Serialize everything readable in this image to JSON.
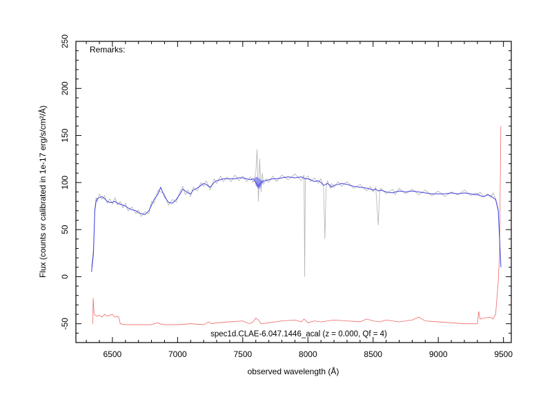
{
  "chart_data": {
    "type": "line",
    "title": "",
    "xlabel": "observed wavelength (Å)",
    "ylabel": "Flux (counts or calibrated in 1e-17 erg/s/cm²/Å)",
    "xlim": [
      6220,
      9560
    ],
    "ylim": [
      -70,
      250
    ],
    "xticks": [
      6500,
      7000,
      7500,
      8000,
      8500,
      9000,
      9500
    ],
    "yticks": [
      -50,
      0,
      50,
      100,
      150,
      200,
      250
    ],
    "xtick_labels": [
      "6500",
      "7000",
      "7500",
      "8000",
      "8500",
      "9000",
      "9500"
    ],
    "ytick_labels": [
      "-50",
      "0",
      "50",
      "100",
      "150",
      "200",
      "250"
    ],
    "remarks": "Remarks:",
    "caption": "spec1d.CLAE-6.047.1446_acal (z = 0.000, Qf = 4)",
    "colors": {
      "data": "#b0b0b0",
      "model": "#4040dd",
      "error": "#ee6666"
    },
    "series": [
      {
        "role": "model",
        "x": [
          6340,
          6355,
          6365,
          6375,
          6385,
          6400,
          6420,
          6440,
          6460,
          6480,
          6500,
          6520,
          6540,
          6560,
          6580,
          6600,
          6620,
          6650,
          6680,
          6700,
          6720,
          6750,
          6780,
          6800,
          6820,
          6850,
          6870,
          6900,
          6930,
          6960,
          6990,
          7020,
          7040,
          7060,
          7080,
          7100,
          7120,
          7150,
          7180,
          7200,
          7220,
          7250,
          7280,
          7300,
          7330,
          7350,
          7380,
          7410,
          7440,
          7470,
          7500,
          7530,
          7560,
          7580,
          7600,
          7620,
          7640,
          7660,
          7680,
          7700,
          7730,
          7760,
          7800,
          7850,
          7900,
          7950,
          7980,
          8000,
          8020,
          8050,
          8080,
          8100,
          8120,
          8150,
          8170,
          8180,
          8200,
          8230,
          8260,
          8300,
          8350,
          8400,
          8450,
          8480,
          8500,
          8520,
          8540,
          8560,
          8600,
          8650,
          8670,
          8700,
          8750,
          8800,
          8850,
          8900,
          8950,
          9000,
          9050,
          9100,
          9150,
          9200,
          9250,
          9280,
          9300,
          9320,
          9350,
          9380,
          9400,
          9420,
          9440,
          9460,
          9470,
          9480
        ],
        "y": [
          5,
          25,
          70,
          80,
          83,
          84,
          85,
          83,
          80,
          79,
          79,
          80,
          78,
          77,
          76,
          75,
          73,
          71,
          70,
          68,
          67,
          66,
          70,
          76,
          82,
          88,
          95,
          85,
          79,
          78,
          82,
          88,
          93,
          91,
          89,
          88,
          92,
          94,
          97,
          99,
          98,
          95,
          100,
          102,
          103,
          104,
          104,
          104,
          104,
          105,
          105,
          104,
          103,
          104,
          100,
          96,
          100,
          102,
          102,
          103,
          104,
          104,
          105,
          106,
          105,
          106,
          104,
          104,
          103,
          101,
          102,
          100,
          97,
          99,
          97,
          95,
          97,
          98,
          99,
          98,
          96,
          95,
          94,
          93,
          92,
          93,
          91,
          92,
          90,
          89,
          90,
          91,
          90,
          91,
          90,
          89,
          88,
          88,
          88,
          89,
          88,
          89,
          88,
          87,
          88,
          86,
          85,
          87,
          86,
          84,
          82,
          70,
          40,
          10
        ]
      },
      {
        "role": "data",
        "x": [
          6340,
          6355,
          6365,
          6375,
          6385,
          6400,
          6420,
          6440,
          6460,
          6480,
          6500,
          6520,
          6540,
          6560,
          6580,
          6600,
          6620,
          6650,
          6680,
          6700,
          6720,
          6750,
          6780,
          6800,
          6820,
          6850,
          6870,
          6900,
          6930,
          6960,
          6990,
          7020,
          7040,
          7060,
          7080,
          7100,
          7120,
          7150,
          7180,
          7200,
          7220,
          7250,
          7280,
          7300,
          7330,
          7350,
          7380,
          7410,
          7440,
          7470,
          7500,
          7530,
          7560,
          7580,
          7600,
          7610,
          7620,
          7630,
          7640,
          7650,
          7660,
          7680,
          7700,
          7730,
          7760,
          7800,
          7850,
          7900,
          7950,
          7970,
          7975,
          7980,
          8000,
          8020,
          8050,
          8080,
          8100,
          8120,
          8130,
          8140,
          8150,
          8170,
          8180,
          8200,
          8230,
          8260,
          8300,
          8350,
          8400,
          8450,
          8480,
          8500,
          8520,
          8540,
          8550,
          8560,
          8600,
          8650,
          8670,
          8700,
          8750,
          8800,
          8850,
          8900,
          8950,
          9000,
          9050,
          9100,
          9150,
          9200,
          9250,
          9280,
          9300,
          9320,
          9350,
          9380,
          9400,
          9420,
          9440,
          9460,
          9470,
          9480
        ],
        "y": [
          10,
          30,
          72,
          84,
          80,
          88,
          82,
          86,
          78,
          83,
          77,
          84,
          76,
          80,
          73,
          78,
          70,
          74,
          67,
          71,
          64,
          69,
          67,
          80,
          78,
          92,
          90,
          88,
          76,
          82,
          79,
          91,
          96,
          87,
          92,
          85,
          95,
          91,
          100,
          96,
          102,
          92,
          104,
          99,
          107,
          101,
          106,
          101,
          108,
          102,
          107,
          101,
          106,
          100,
          110,
          135,
          80,
          125,
          90,
          110,
          98,
          104,
          100,
          107,
          101,
          108,
          103,
          109,
          102,
          108,
          0,
          104,
          107,
          101,
          105,
          99,
          104,
          96,
          40,
          95,
          102,
          94,
          99,
          95,
          101,
          96,
          101,
          94,
          98,
          91,
          96,
          90,
          95,
          55,
          89,
          94,
          88,
          93,
          87,
          94,
          88,
          93,
          87,
          92,
          86,
          91,
          85,
          90,
          87,
          92,
          86,
          89,
          86,
          90,
          85,
          88,
          84,
          89,
          83,
          72,
          42,
          12
        ]
      },
      {
        "role": "error",
        "x": [
          6350,
          6352,
          6360,
          6380,
          6400,
          6420,
          6440,
          6460,
          6480,
          6500,
          6520,
          6540,
          6550,
          6560,
          6600,
          6700,
          6800,
          6850,
          6860,
          6900,
          7000,
          7100,
          7200,
          7240,
          7260,
          7300,
          7400,
          7500,
          7550,
          7580,
          7600,
          7620,
          7640,
          7700,
          7800,
          7900,
          7950,
          7970,
          8000,
          8050,
          8100,
          8200,
          8300,
          8400,
          8450,
          8500,
          8550,
          8600,
          8700,
          8800,
          8850,
          8900,
          9000,
          9100,
          9200,
          9300,
          9310,
          9320,
          9350,
          9400,
          9420,
          9440,
          9460,
          9470,
          9480
        ],
        "y": [
          -50,
          -23,
          -40,
          -42,
          -41,
          -43,
          -40,
          -42,
          -41,
          -40,
          -43,
          -42,
          -44,
          -50,
          -51,
          -51,
          -51,
          -49,
          -50,
          -51,
          -51,
          -50,
          -51,
          -48,
          -50,
          -49,
          -48,
          -47,
          -50,
          -48,
          -44,
          -46,
          -50,
          -49,
          -47,
          -46,
          -48,
          -45,
          -49,
          -47,
          -48,
          -46,
          -47,
          -48,
          -45,
          -47,
          -48,
          -46,
          -48,
          -46,
          -43,
          -47,
          -48,
          -49,
          -50,
          -50,
          -37,
          -45,
          -44,
          -43,
          -45,
          -40,
          -5,
          25,
          160
        ]
      }
    ],
    "band": {
      "role": "model-uncertainty",
      "x": [
        7590,
        7600,
        7610,
        7620,
        7630,
        7640,
        7650,
        7660
      ],
      "upper": [
        104,
        106,
        106,
        105,
        104,
        103,
        102,
        102
      ],
      "lower": [
        103,
        97,
        95,
        93,
        94,
        96,
        99,
        101
      ]
    }
  }
}
